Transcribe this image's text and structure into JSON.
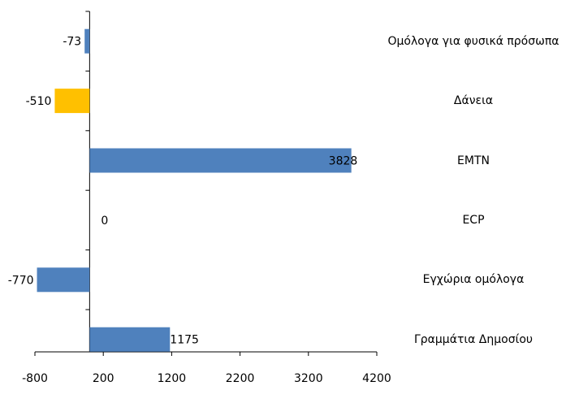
{
  "chart_data": {
    "type": "bar",
    "orientation": "horizontal",
    "categories": [
      "Ομόλογα για φυσικά πρόσωπα",
      "Δάνεια",
      "EMTN",
      "ECP",
      "Εγχώρια ομόλογα",
      "Γραμμάτια Δημοσίου"
    ],
    "values": [
      -73,
      -510,
      3828,
      0,
      -770,
      1175
    ],
    "colors": [
      "#4f81bd",
      "#ffc000",
      "#4f81bd",
      "#4f81bd",
      "#4f81bd",
      "#4f81bd"
    ],
    "xlim": [
      -800,
      4200
    ],
    "xticks": [
      -800,
      200,
      1200,
      2200,
      3200,
      4200
    ],
    "grid": false
  }
}
